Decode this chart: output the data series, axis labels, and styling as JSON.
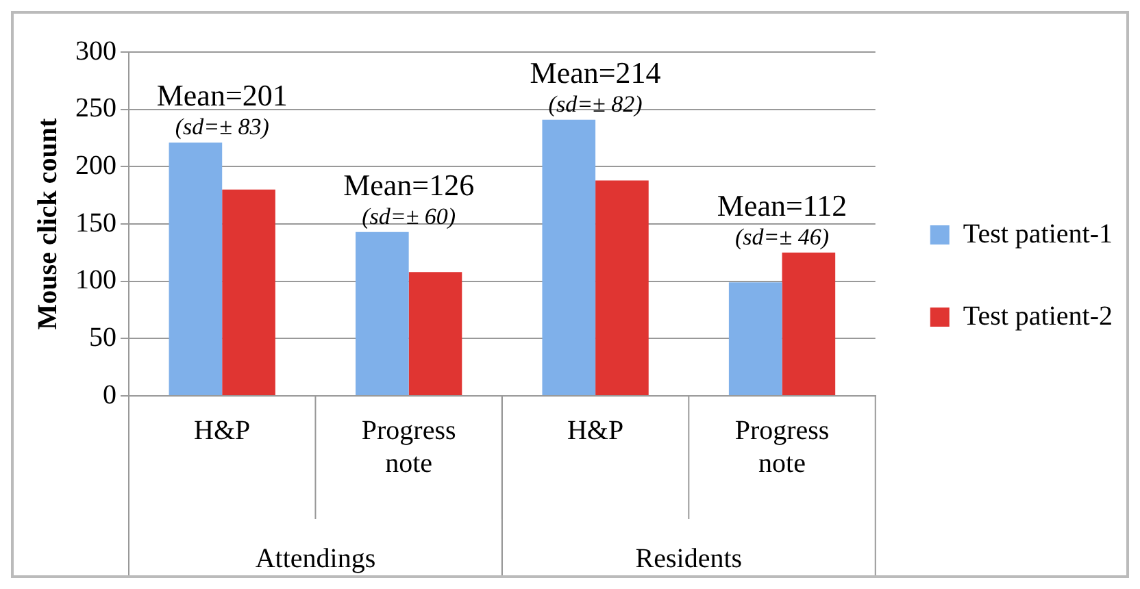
{
  "chart_data": {
    "type": "bar",
    "ylabel": "Mouse click count",
    "categories": [
      "H&P",
      "Progress note",
      "H&P",
      "Progress note"
    ],
    "series": [
      {
        "name": "Test patient-1",
        "color": "#7fb0ea",
        "values": [
          221,
          143,
          241,
          99
        ]
      },
      {
        "name": "Test patient-2",
        "color": "#e03532",
        "values": [
          180,
          108,
          188,
          125
        ]
      }
    ],
    "ylim": [
      0,
      300
    ],
    "yticks": [
      0,
      50,
      100,
      150,
      200,
      250,
      300
    ],
    "grid": "y",
    "legend": "right",
    "annotations": [
      "Mean=201",
      "(sd=± 83)",
      "Mean=126",
      "(sd=± 60)",
      "Mean=214",
      "(sd=± 82)",
      "Mean=112",
      "(sd=± 46)",
      "Attendings",
      "Residents"
    ]
  }
}
